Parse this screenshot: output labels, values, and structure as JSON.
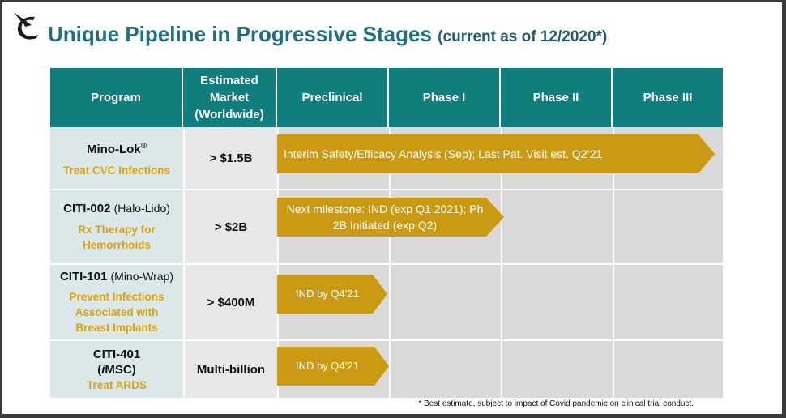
{
  "title": {
    "main": "Unique Pipeline in Progressive Stages",
    "note": "(current as of 12/2020*)"
  },
  "columns": [
    "Program",
    "Estimated Market (Worldwide)",
    "Preclinical",
    "Phase I",
    "Phase II",
    "Phase III"
  ],
  "rows": [
    {
      "name": "Mino-Lok®",
      "paren": "",
      "name_line2": "",
      "indication": "Treat CVC Infections",
      "market": "> $1.5B",
      "milestone": "Interim Safety/Efficacy Analysis (Sep); Last Pat. Visit est. Q2’21",
      "progress_through": "Phase III"
    },
    {
      "name": "CITI-002",
      "paren": "(Halo-Lido)",
      "name_line2": "",
      "indication": "Rx Therapy for Hemorrhoids",
      "market": "> $2B",
      "milestone": "Next milestone: IND (exp Q1 2021); Ph 2B Initiated (exp Q2)",
      "progress_through": "Phase I"
    },
    {
      "name": "CITI-101",
      "paren": "(Mino-Wrap)",
      "name_line2": "",
      "indication": "Prevent Infections Associated with Breast Implants",
      "market": "> $400M",
      "milestone": "IND by Q4’21",
      "progress_through": "Preclinical"
    },
    {
      "name": "CITI-401",
      "paren": "",
      "name_line2": "(iMSC)",
      "indication": "Treat ARDS",
      "market": "Multi-billion",
      "milestone": "IND by Q4’21",
      "progress_through": "Preclinical"
    }
  ],
  "footnote": "* Best estimate, subject to impact of Covid pandemic on clinical trial conduct.",
  "colors": {
    "header": "#0f7e7c",
    "title": "#1f6f7f",
    "arrow": "#c99a12",
    "indication": "#d9a20f",
    "program_bg": "#dbe8ea",
    "stage_bg": "#d9d9d9"
  }
}
